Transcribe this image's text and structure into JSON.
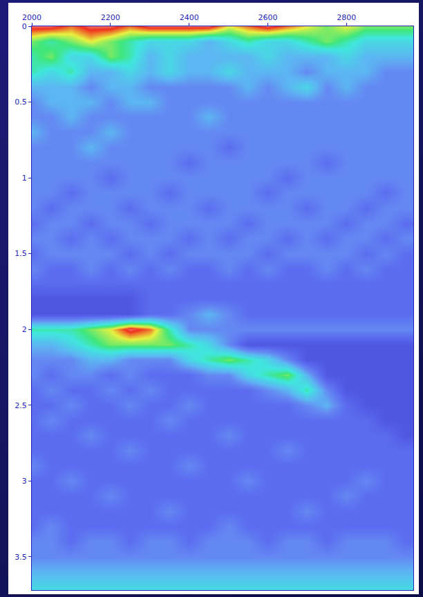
{
  "chart_data": {
    "type": "heatmap",
    "x": [
      2000,
      2050,
      2100,
      2150,
      2200,
      2250,
      2300,
      2350,
      2400,
      2450,
      2500,
      2550,
      2600,
      2650,
      2700,
      2750,
      2800,
      2850,
      2900,
      2950
    ],
    "y": [
      0,
      0.1,
      0.2,
      0.3,
      0.4,
      0.5,
      0.6,
      0.7,
      0.8,
      0.9,
      1,
      1.1,
      1.2,
      1.3,
      1.4,
      1.5,
      1.6,
      1.7,
      1.8,
      1.9,
      2,
      2.1,
      2.2,
      2.3,
      2.4,
      2.5,
      2.6,
      2.7,
      2.8,
      2.9,
      3,
      3.1,
      3.2,
      3.3,
      3.4,
      3.5,
      3.6,
      3.7
    ],
    "z": [
      [
        9,
        9,
        8,
        9,
        9,
        8,
        9,
        9,
        9,
        9,
        7,
        8,
        9,
        8,
        7,
        6,
        7,
        6,
        6,
        6
      ],
      [
        6,
        5,
        6,
        7,
        6,
        5,
        4,
        4,
        4,
        3,
        4,
        5,
        4,
        4,
        5,
        6,
        5,
        4,
        4,
        4
      ],
      [
        5,
        6,
        4,
        4,
        6,
        5,
        3,
        4,
        3,
        3,
        3,
        3,
        4,
        3,
        3,
        3,
        4,
        3,
        3,
        3
      ],
      [
        5,
        4,
        5,
        3,
        3,
        4,
        3,
        4,
        3,
        3,
        4,
        3,
        3,
        3,
        2,
        3,
        3,
        3,
        2,
        2
      ],
      [
        3,
        3,
        3,
        2,
        3,
        3,
        2,
        2,
        2,
        2,
        2,
        3,
        2,
        3,
        4,
        2,
        3,
        2,
        2,
        2
      ],
      [
        2,
        3,
        3,
        3,
        2,
        3,
        3,
        2,
        2,
        2,
        2,
        2,
        2,
        2,
        2,
        2,
        2,
        2,
        2,
        2
      ],
      [
        2,
        2,
        3,
        2,
        2,
        2,
        2,
        2,
        2,
        3,
        2,
        2,
        2,
        2,
        2,
        2,
        2,
        2,
        2,
        2
      ],
      [
        3,
        2,
        2,
        2,
        3,
        2,
        2,
        2,
        2,
        2,
        2,
        2,
        2,
        2,
        2,
        2,
        2,
        2,
        2,
        2
      ],
      [
        2,
        2,
        2,
        3,
        2,
        2,
        2,
        2,
        2,
        2,
        1,
        2,
        2,
        2,
        2,
        2,
        2,
        2,
        2,
        2
      ],
      [
        2,
        2,
        2,
        2,
        2,
        2,
        2,
        2,
        1,
        2,
        2,
        2,
        2,
        2,
        2,
        1,
        2,
        2,
        2,
        2
      ],
      [
        2,
        2,
        2,
        2,
        1,
        2,
        2,
        2,
        2,
        2,
        2,
        2,
        2,
        1,
        2,
        2,
        2,
        2,
        2,
        2
      ],
      [
        2,
        2,
        1,
        2,
        2,
        2,
        2,
        1,
        2,
        2,
        2,
        2,
        1,
        2,
        2,
        2,
        2,
        2,
        1,
        2
      ],
      [
        2,
        1,
        2,
        2,
        2,
        1,
        2,
        2,
        2,
        1,
        2,
        2,
        2,
        2,
        1,
        2,
        2,
        1,
        2,
        2
      ],
      [
        1,
        2,
        2,
        1,
        2,
        2,
        1,
        2,
        2,
        2,
        2,
        1,
        2,
        2,
        2,
        2,
        1,
        2,
        2,
        1
      ],
      [
        2,
        2,
        1,
        2,
        1,
        2,
        2,
        2,
        1,
        2,
        1,
        2,
        2,
        1,
        2,
        1,
        2,
        2,
        1,
        2
      ],
      [
        1,
        2,
        2,
        2,
        2,
        1,
        2,
        1,
        2,
        2,
        2,
        2,
        1,
        2,
        2,
        2,
        2,
        1,
        2,
        1
      ],
      [
        2,
        1,
        1,
        2,
        1,
        2,
        1,
        2,
        1,
        1,
        2,
        1,
        2,
        1,
        1,
        2,
        1,
        2,
        1,
        1
      ],
      [
        1,
        1,
        1,
        1,
        1,
        1,
        1,
        1,
        1,
        1,
        1,
        1,
        1,
        1,
        1,
        1,
        1,
        1,
        1,
        1
      ],
      [
        0,
        0,
        0,
        0,
        0,
        0,
        1,
        1,
        1,
        1,
        1,
        1,
        1,
        1,
        1,
        1,
        1,
        1,
        1,
        1
      ],
      [
        0,
        0,
        0,
        0,
        0,
        0,
        1,
        1,
        2,
        3,
        2,
        1,
        1,
        1,
        1,
        1,
        1,
        1,
        1,
        1
      ],
      [
        5,
        5,
        5,
        6,
        7,
        9,
        8,
        5,
        2,
        2,
        2,
        2,
        2,
        2,
        2,
        2,
        2,
        2,
        2,
        2
      ],
      [
        3,
        3,
        4,
        5,
        6,
        6,
        6,
        6,
        5,
        4,
        2,
        0,
        0,
        0,
        0,
        0,
        0,
        0,
        0,
        0
      ],
      [
        2,
        2,
        2,
        3,
        3,
        2,
        2,
        2,
        4,
        5,
        6,
        5,
        4,
        2,
        0,
        0,
        0,
        0,
        0,
        0
      ],
      [
        2,
        1,
        2,
        2,
        1,
        2,
        1,
        1,
        1,
        2,
        2,
        4,
        5,
        6,
        3,
        0,
        0,
        0,
        0,
        0
      ],
      [
        1,
        2,
        1,
        1,
        2,
        1,
        2,
        1,
        1,
        1,
        1,
        1,
        2,
        3,
        5,
        2,
        0,
        0,
        0,
        0
      ],
      [
        1,
        1,
        2,
        1,
        1,
        2,
        1,
        1,
        2,
        1,
        1,
        1,
        1,
        1,
        2,
        3,
        1,
        0,
        0,
        0
      ],
      [
        1,
        2,
        1,
        1,
        1,
        1,
        1,
        2,
        1,
        1,
        1,
        1,
        1,
        1,
        1,
        1,
        1,
        1,
        0,
        0
      ],
      [
        1,
        1,
        1,
        2,
        1,
        1,
        1,
        1,
        1,
        1,
        2,
        1,
        1,
        1,
        1,
        1,
        1,
        1,
        1,
        0
      ],
      [
        1,
        1,
        1,
        1,
        1,
        2,
        1,
        1,
        1,
        1,
        1,
        1,
        1,
        2,
        1,
        1,
        1,
        1,
        1,
        1
      ],
      [
        2,
        1,
        1,
        1,
        1,
        1,
        1,
        1,
        2,
        1,
        1,
        1,
        1,
        1,
        1,
        1,
        1,
        1,
        1,
        1
      ],
      [
        1,
        1,
        2,
        1,
        1,
        1,
        1,
        1,
        1,
        1,
        1,
        2,
        1,
        1,
        1,
        1,
        1,
        2,
        1,
        1
      ],
      [
        1,
        1,
        1,
        1,
        2,
        1,
        1,
        1,
        1,
        1,
        1,
        1,
        1,
        1,
        1,
        1,
        2,
        1,
        1,
        1
      ],
      [
        1,
        1,
        1,
        1,
        1,
        1,
        1,
        2,
        1,
        1,
        1,
        1,
        1,
        1,
        2,
        1,
        1,
        1,
        1,
        1
      ],
      [
        1,
        2,
        1,
        1,
        1,
        1,
        1,
        1,
        1,
        1,
        2,
        1,
        1,
        1,
        1,
        1,
        1,
        1,
        1,
        1
      ],
      [
        2,
        2,
        1,
        2,
        2,
        1,
        2,
        2,
        1,
        2,
        2,
        2,
        1,
        2,
        2,
        1,
        2,
        2,
        2,
        1
      ],
      [
        2,
        2,
        2,
        2,
        2,
        2,
        2,
        2,
        2,
        2,
        2,
        2,
        2,
        2,
        2,
        2,
        2,
        2,
        2,
        2
      ],
      [
        3,
        3,
        3,
        3,
        3,
        3,
        3,
        3,
        3,
        3,
        3,
        3,
        3,
        3,
        3,
        3,
        3,
        3,
        3,
        3
      ],
      [
        4,
        4,
        4,
        4,
        4,
        4,
        4,
        4,
        4,
        4,
        4,
        4,
        4,
        4,
        4,
        4,
        4,
        4,
        4,
        4
      ]
    ],
    "zlim": [
      0,
      10
    ],
    "xlim": [
      2000,
      2970
    ],
    "ylim": [
      3.72,
      0
    ],
    "xticks": [
      2000,
      2200,
      2400,
      2600,
      2800
    ],
    "yticks": [
      0,
      0.5,
      1,
      1.5,
      2,
      2.5,
      3,
      3.5
    ],
    "grid": false
  }
}
